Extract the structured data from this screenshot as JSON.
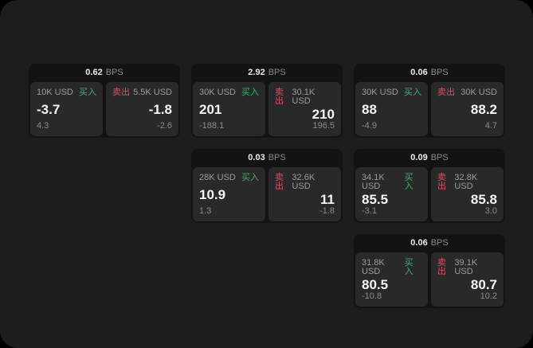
{
  "labels": {
    "bps_unit": "BPS",
    "buy": "买入",
    "sell": "卖出"
  },
  "colors": {
    "surface": "#1d1d1e",
    "card_bg": "#131314",
    "panel_bg": "#29292a",
    "buy_green": "#3fae73",
    "sell_red": "#dc5066",
    "price_text": "#f5f5f5",
    "muted_text": "#8c8c8c"
  },
  "cards": [
    {
      "bps": "0.62",
      "grid": {
        "col": 1,
        "row": 1
      },
      "buy": {
        "amount": "10K USD",
        "price": "-3.7",
        "delta": "4.3"
      },
      "sell": {
        "amount": "5.5K USD",
        "price": "-1.8",
        "delta": "-2.6"
      }
    },
    {
      "bps": "2.92",
      "grid": {
        "col": 2,
        "row": 1
      },
      "buy": {
        "amount": "30K USD",
        "price": "201",
        "delta": "-188.1"
      },
      "sell": {
        "amount": "30.1K USD",
        "price": "210",
        "delta": "196.5"
      }
    },
    {
      "bps": "0.06",
      "grid": {
        "col": 3,
        "row": 1
      },
      "buy": {
        "amount": "30K USD",
        "price": "88",
        "delta": "-4.9"
      },
      "sell": {
        "amount": "30K USD",
        "price": "88.2",
        "delta": "4.7"
      }
    },
    {
      "bps": "0.03",
      "grid": {
        "col": 2,
        "row": 2
      },
      "buy": {
        "amount": "28K USD",
        "price": "10.9",
        "delta": "1.3"
      },
      "sell": {
        "amount": "32.6K USD",
        "price": "11",
        "delta": "-1.8"
      }
    },
    {
      "bps": "0.09",
      "grid": {
        "col": 3,
        "row": 2
      },
      "buy": {
        "amount": "34.1K USD",
        "price": "85.5",
        "delta": "-3.1"
      },
      "sell": {
        "amount": "32.8K USD",
        "price": "85.8",
        "delta": "3.0"
      }
    },
    {
      "bps": "0.06",
      "grid": {
        "col": 3,
        "row": 3
      },
      "buy": {
        "amount": "31.8K USD",
        "price": "80.5",
        "delta": "-10.8"
      },
      "sell": {
        "amount": "39.1K USD",
        "price": "80.7",
        "delta": "10.2"
      }
    }
  ]
}
